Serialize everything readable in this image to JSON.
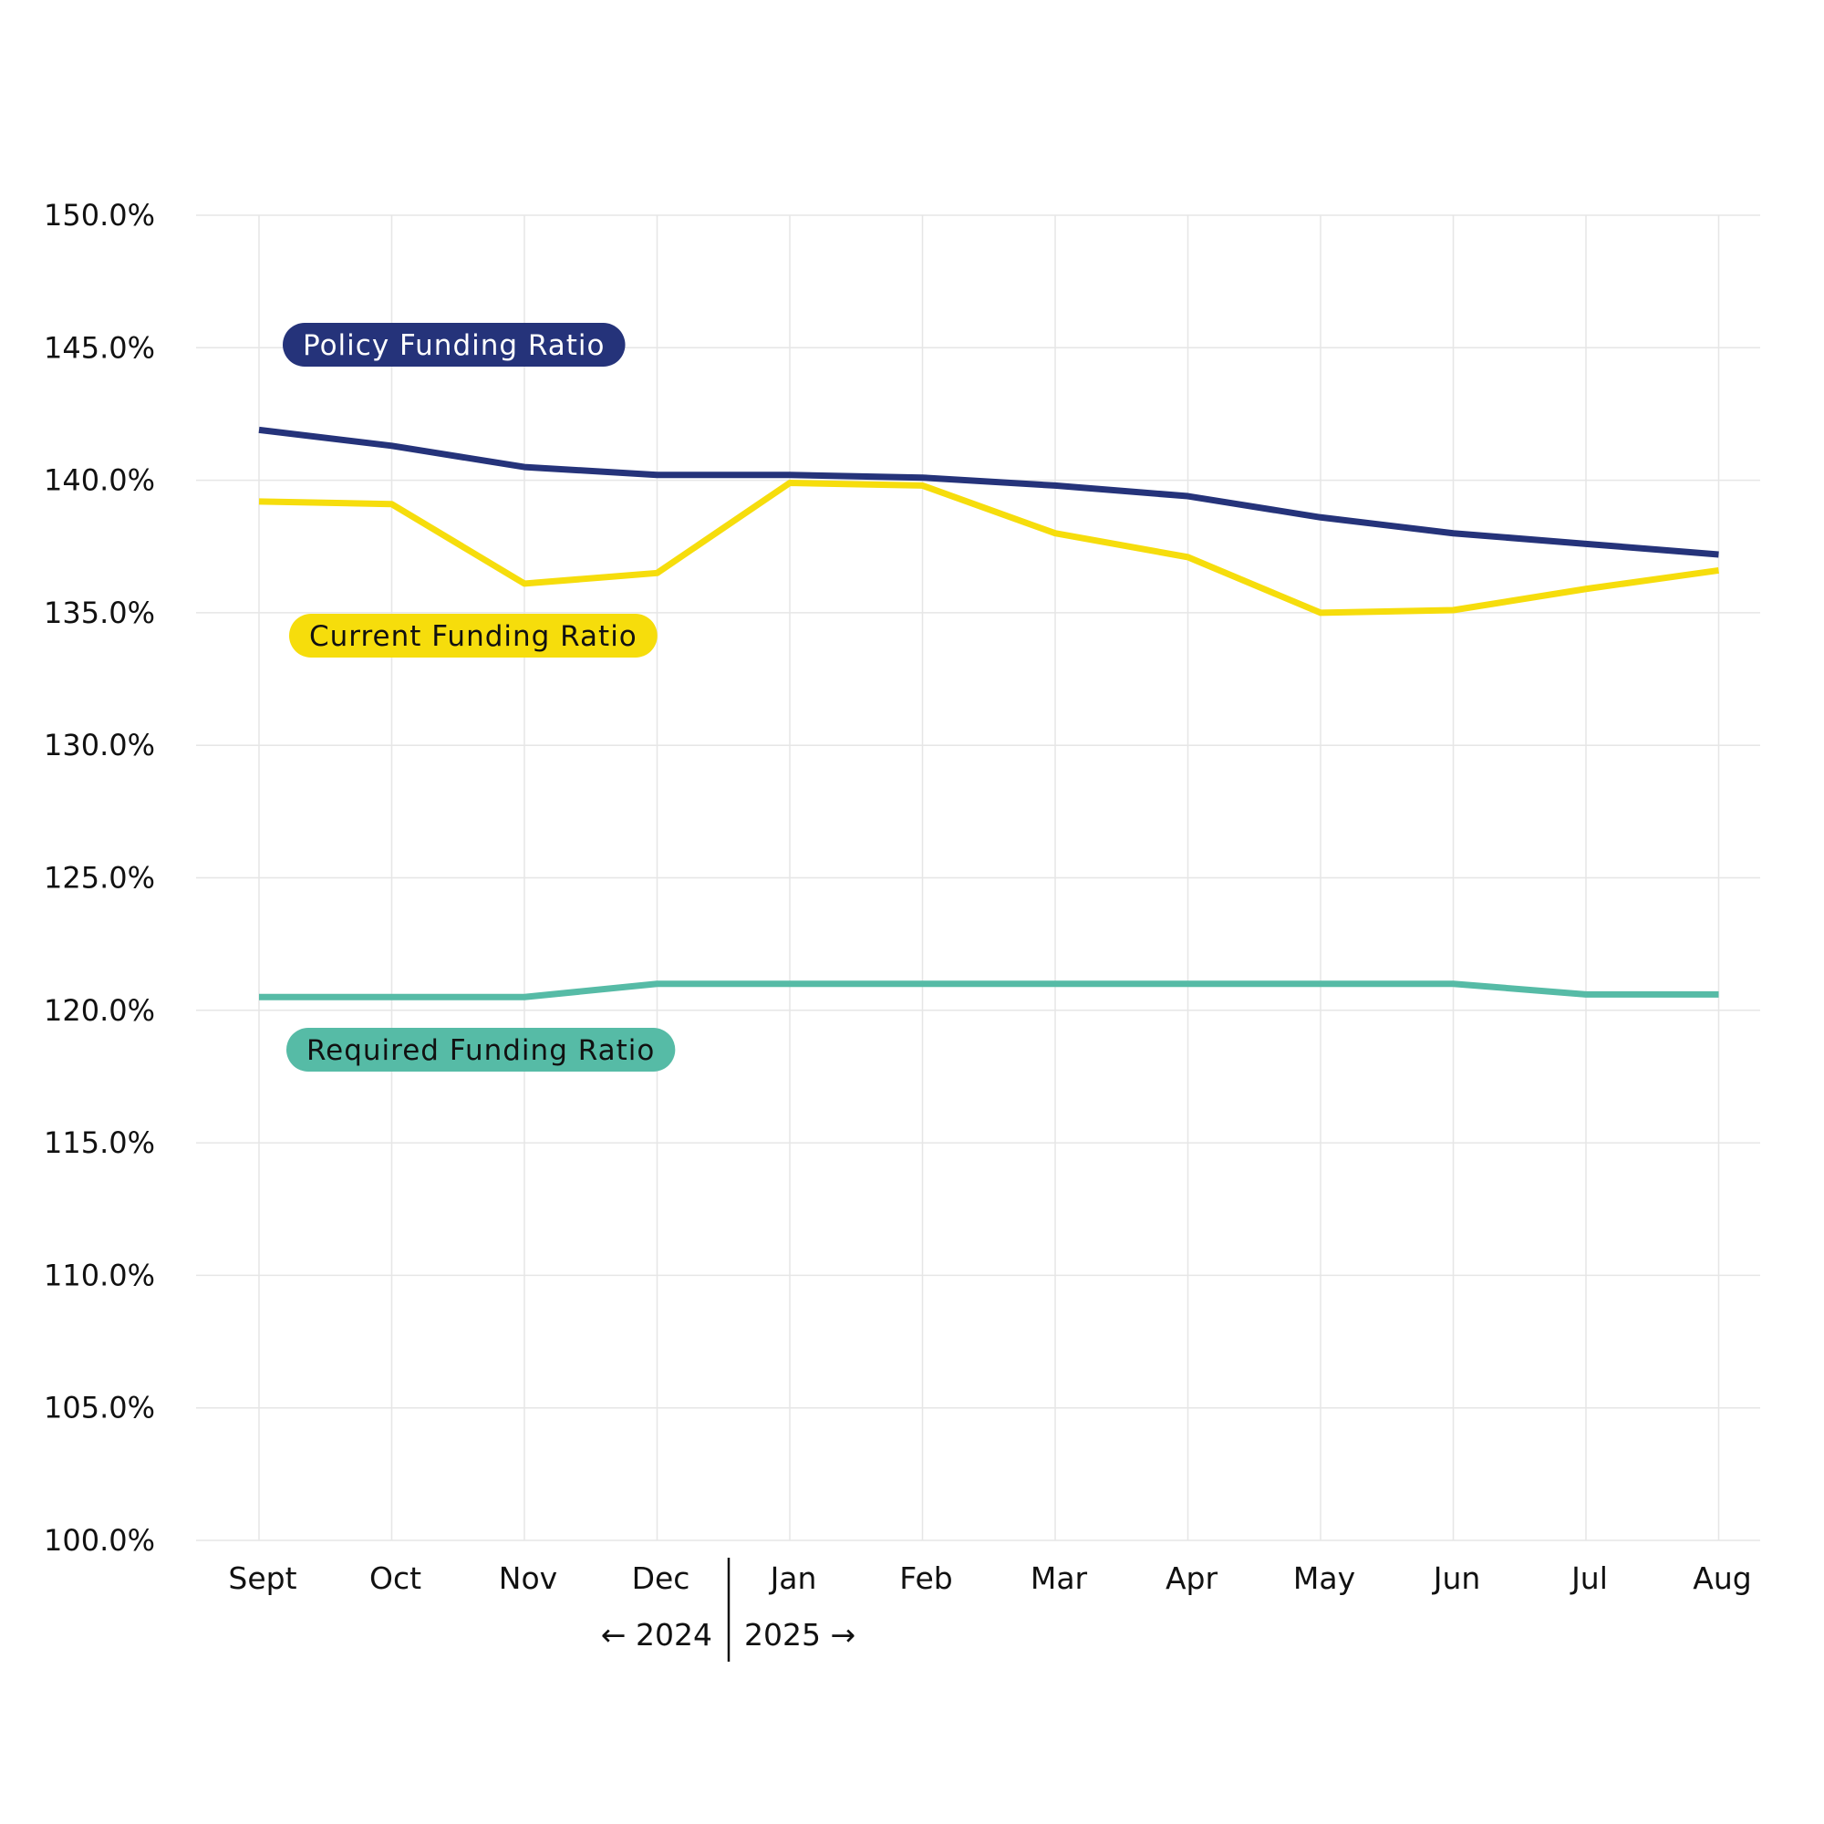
{
  "chart_data": {
    "type": "line",
    "title": "",
    "xlabel": "",
    "ylabel": "",
    "categories": [
      "Sept",
      "Oct",
      "Nov",
      "Dec",
      "Jan",
      "Feb",
      "Mar",
      "Apr",
      "May",
      "Jun",
      "Jul",
      "Aug"
    ],
    "ylim": [
      100,
      150
    ],
    "y_ticks": [
      "100.0%",
      "105.0%",
      "110.0%",
      "115.0%",
      "120.0%",
      "125.0%",
      "130.0%",
      "135.0%",
      "140.0%",
      "145.0%",
      "150.0%"
    ],
    "grid": true,
    "year_labels": {
      "left": "← 2024",
      "right": "2025 →"
    },
    "year_divider_after": "Dec",
    "series": [
      {
        "name": "Policy Funding Ratio",
        "color": "#25337a",
        "label_text_color": "#ffffff",
        "values": [
          141.9,
          141.3,
          140.5,
          140.2,
          140.2,
          140.1,
          139.8,
          139.4,
          138.6,
          138.0,
          137.6,
          137.2
        ]
      },
      {
        "name": "Current Funding Ratio",
        "color": "#f6dd0c",
        "label_text_color": "#111111",
        "values": [
          139.2,
          139.1,
          136.1,
          136.5,
          139.9,
          139.8,
          138.0,
          137.1,
          135.0,
          135.1,
          135.9,
          136.6
        ]
      },
      {
        "name": "Required Funding Ratio",
        "color": "#56bba6",
        "label_text_color": "#111111",
        "values": [
          120.5,
          120.5,
          120.5,
          121.0,
          121.0,
          121.0,
          121.0,
          121.0,
          121.0,
          121.0,
          120.6,
          120.6
        ]
      }
    ]
  }
}
